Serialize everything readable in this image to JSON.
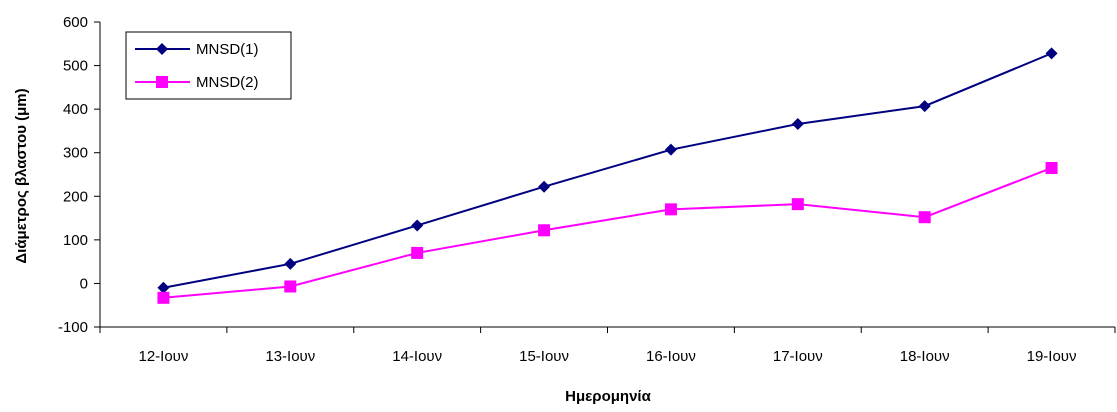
{
  "chart_data": {
    "type": "line",
    "categories": [
      "12-Ιουν",
      "13-Ιουν",
      "14-Ιουν",
      "15-Ιουν",
      "16-Ιουν",
      "17-Ιουν",
      "18-Ιουν",
      "19-Ιουν"
    ],
    "series": [
      {
        "name": "MNSD(1)",
        "values": [
          -10,
          45,
          133,
          222,
          307,
          366,
          407,
          528
        ],
        "color": "#000080",
        "marker": "diamond"
      },
      {
        "name": "MNSD(2)",
        "values": [
          -33,
          -7,
          70,
          122,
          170,
          182,
          152,
          265
        ],
        "color": "#FF00FF",
        "marker": "square"
      }
    ],
    "xlabel": "Ημερομηνία",
    "ylabel": "Διάμετρος βλαστου (μm)",
    "ylim": [
      -100,
      600
    ],
    "yticks": [
      -100,
      0,
      100,
      200,
      300,
      400,
      500,
      600
    ],
    "grid": false,
    "legend_position": "top-left"
  }
}
